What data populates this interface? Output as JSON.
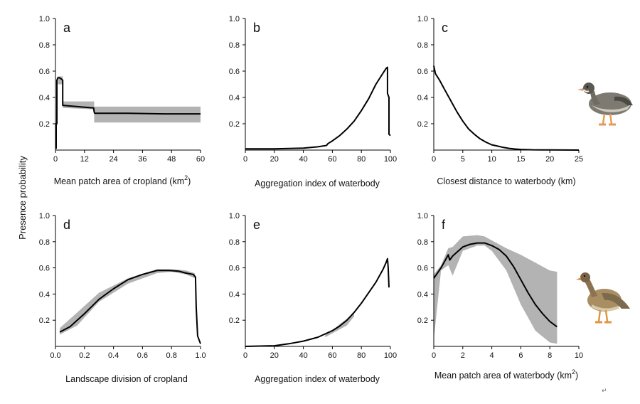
{
  "figure": {
    "ylabel": "Presence probability",
    "corner_mark": "↵"
  },
  "chart_data": [
    {
      "panel": "a",
      "type": "line",
      "xlabel": "Mean patch area of cropland (km",
      "xlabel_sup": "2",
      "xlabel_end": ")",
      "xlim": [
        0,
        60
      ],
      "ylim": [
        0,
        1.0
      ],
      "xticks": [
        "0",
        "12",
        "24",
        "36",
        "48",
        "60"
      ],
      "yticks": [
        "0.2",
        "0.4",
        "0.6",
        "0.8",
        "1.0"
      ],
      "band": {
        "x": [
          1,
          3,
          3,
          16,
          16,
          60
        ],
        "lower": [
          0.5,
          0.5,
          0.32,
          0.31,
          0.21,
          0.21
        ],
        "upper": [
          0.56,
          0.56,
          0.37,
          0.37,
          0.33,
          0.33
        ]
      },
      "series": [
        {
          "x": [
            0.3,
            0.3,
            0.6,
            0.6,
            1.0,
            1.5,
            2.5,
            3.0,
            3.0,
            15.8,
            16.0,
            16.2,
            30,
            45,
            60
          ],
          "y": [
            0.01,
            0.2,
            0.2,
            0.53,
            0.55,
            0.55,
            0.54,
            0.53,
            0.34,
            0.32,
            0.29,
            0.28,
            0.28,
            0.275,
            0.275
          ]
        }
      ]
    },
    {
      "panel": "b",
      "type": "line",
      "xlabel": "Aggregation index of waterbody",
      "xlim": [
        0,
        100
      ],
      "ylim": [
        0,
        1.0
      ],
      "xticks": [
        "0",
        "20",
        "40",
        "60",
        "80",
        "100"
      ],
      "yticks": [
        "0.2",
        "0.4",
        "0.6",
        "0.8",
        "1.0"
      ],
      "series": [
        {
          "x": [
            0,
            20,
            40,
            50,
            56,
            57,
            60,
            65,
            70,
            75,
            80,
            85,
            90,
            94,
            97,
            98,
            98,
            99,
            99,
            100
          ],
          "y": [
            0.01,
            0.01,
            0.015,
            0.025,
            0.035,
            0.05,
            0.07,
            0.11,
            0.16,
            0.22,
            0.3,
            0.39,
            0.5,
            0.57,
            0.62,
            0.63,
            0.43,
            0.4,
            0.12,
            0.11
          ]
        }
      ]
    },
    {
      "panel": "c",
      "type": "line",
      "xlabel": "Closest distance to waterbody (km)",
      "xlim": [
        0,
        25
      ],
      "ylim": [
        0,
        1.0
      ],
      "xticks": [
        "0",
        "5",
        "10",
        "15",
        "20",
        "25"
      ],
      "yticks": [
        "0.2",
        "0.4",
        "0.6",
        "0.8",
        "1.0"
      ],
      "series": [
        {
          "x": [
            0,
            0.3,
            1,
            2,
            3,
            4,
            5,
            6,
            7,
            8,
            9,
            10,
            11,
            12,
            13,
            14,
            15,
            17,
            20,
            25
          ],
          "y": [
            0.64,
            0.58,
            0.53,
            0.45,
            0.37,
            0.29,
            0.22,
            0.16,
            0.12,
            0.085,
            0.06,
            0.04,
            0.03,
            0.02,
            0.013,
            0.008,
            0.005,
            0.002,
            0.001,
            0.0
          ]
        }
      ]
    },
    {
      "panel": "d",
      "type": "line",
      "xlabel": "Landscape division of cropland",
      "xlim": [
        0,
        1.0
      ],
      "ylim": [
        0,
        1.0
      ],
      "xticks": [
        "0.0",
        "0.2",
        "0.4",
        "0.6",
        "0.8",
        "1.0"
      ],
      "yticks": [
        "0.2",
        "0.4",
        "0.6",
        "0.8",
        "1.0"
      ],
      "band": {
        "x": [
          0.03,
          0.15,
          0.3,
          0.5,
          0.7,
          0.8,
          0.9,
          0.96
        ],
        "lower": [
          0.09,
          0.16,
          0.34,
          0.48,
          0.56,
          0.57,
          0.55,
          0.52
        ],
        "upper": [
          0.14,
          0.26,
          0.41,
          0.52,
          0.59,
          0.59,
          0.58,
          0.56
        ]
      },
      "series": [
        {
          "x": [
            0.03,
            0.1,
            0.2,
            0.3,
            0.4,
            0.5,
            0.6,
            0.7,
            0.78,
            0.85,
            0.9,
            0.95,
            0.965,
            0.97,
            0.98,
            1.0
          ],
          "y": [
            0.11,
            0.15,
            0.25,
            0.36,
            0.44,
            0.51,
            0.55,
            0.58,
            0.58,
            0.575,
            0.56,
            0.55,
            0.53,
            0.3,
            0.08,
            0.02
          ]
        }
      ]
    },
    {
      "panel": "e",
      "type": "line",
      "xlabel": "Aggregation index of waterbody",
      "xlim": [
        0,
        100
      ],
      "ylim": [
        0,
        1.0
      ],
      "xticks": [
        "0",
        "20",
        "40",
        "60",
        "80",
        "100"
      ],
      "yticks": [
        "0.2",
        "0.4",
        "0.6",
        "0.8",
        "1.0"
      ],
      "band": {
        "x": [
          55,
          60,
          65,
          70,
          75
        ],
        "lower": [
          0.07,
          0.1,
          0.13,
          0.16,
          0.23
        ],
        "upper": [
          0.09,
          0.12,
          0.17,
          0.21,
          0.26
        ]
      },
      "series": [
        {
          "x": [
            0,
            20,
            30,
            40,
            50,
            60,
            65,
            70,
            75,
            80,
            85,
            90,
            95,
            97,
            98,
            98.5,
            99
          ],
          "y": [
            0.0,
            0.005,
            0.02,
            0.04,
            0.07,
            0.12,
            0.155,
            0.2,
            0.26,
            0.33,
            0.41,
            0.49,
            0.59,
            0.64,
            0.67,
            0.6,
            0.45
          ]
        }
      ]
    },
    {
      "panel": "f",
      "type": "line",
      "xlabel": "Mean patch area of waterbody (km",
      "xlabel_sup": "2",
      "xlabel_end": ")",
      "xlim": [
        0,
        10
      ],
      "ylim": [
        0,
        1.0
      ],
      "xticks": [
        "0",
        "2",
        "4",
        "6",
        "8",
        "10"
      ],
      "yticks": [
        "0.2",
        "0.4",
        "0.6",
        "0.8",
        "1.0"
      ],
      "band": {
        "x": [
          0,
          0.5,
          1.0,
          1.3,
          2,
          3,
          3.5,
          4,
          5,
          6,
          7,
          8,
          8.5
        ],
        "lower": [
          0.05,
          0.58,
          0.62,
          0.54,
          0.73,
          0.77,
          0.77,
          0.73,
          0.58,
          0.32,
          0.12,
          0.03,
          0.02
        ],
        "upper": [
          0.55,
          0.62,
          0.75,
          0.76,
          0.84,
          0.85,
          0.84,
          0.81,
          0.75,
          0.7,
          0.64,
          0.58,
          0.57
        ]
      },
      "series": [
        {
          "x": [
            0,
            0.5,
            1.0,
            1.1,
            1.3,
            1.6,
            2,
            2.5,
            3,
            3.5,
            4,
            4.5,
            5,
            5.5,
            6,
            6.5,
            7,
            7.5,
            8,
            8.5
          ],
          "y": [
            0.52,
            0.6,
            0.7,
            0.66,
            0.69,
            0.72,
            0.76,
            0.78,
            0.79,
            0.79,
            0.77,
            0.74,
            0.69,
            0.61,
            0.51,
            0.41,
            0.32,
            0.25,
            0.19,
            0.15
          ]
        }
      ]
    }
  ]
}
